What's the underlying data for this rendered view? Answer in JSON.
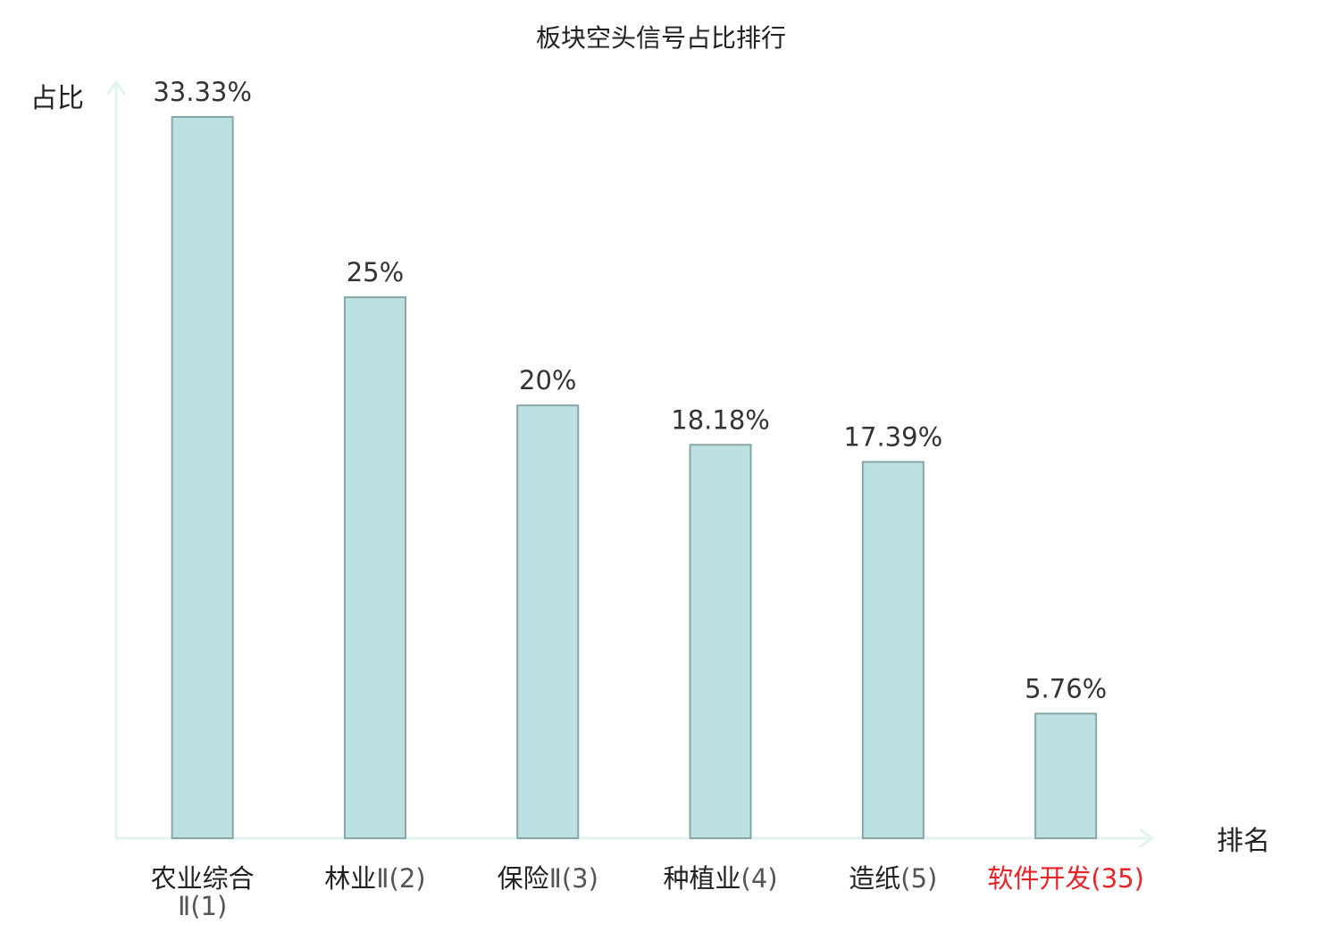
{
  "chart_data": {
    "type": "bar",
    "title": "板块空头信号占比排行",
    "ylabel": "占比",
    "xlabel": "排名",
    "ylim": [
      0,
      35
    ],
    "grid": false,
    "categories": [
      {
        "name": "农业综合",
        "suffix": "Ⅱ(1)",
        "highlight": false
      },
      {
        "name": "林业",
        "suffix": "Ⅱ(2)",
        "highlight": false
      },
      {
        "name": "保险",
        "suffix": "Ⅱ(3)",
        "highlight": false
      },
      {
        "name": "种植业",
        "suffix": "(4)",
        "highlight": false
      },
      {
        "name": "造纸",
        "suffix": "(5)",
        "highlight": false
      },
      {
        "name": "软件开发",
        "suffix": "(35)",
        "highlight": true
      }
    ],
    "values": [
      33.33,
      25,
      20,
      18.18,
      17.39,
      5.76
    ],
    "value_labels": [
      "33.33%",
      "25%",
      "20%",
      "18.18%",
      "17.39%",
      "5.76%"
    ]
  },
  "colors": {
    "bar_fill": "#bde0e3",
    "bar_stroke": "#86a6a8",
    "axis": "#e2f3f0",
    "text": "#222222",
    "label_text": "#333333",
    "suffix_text": "#555555",
    "highlight": "#e8242a"
  }
}
